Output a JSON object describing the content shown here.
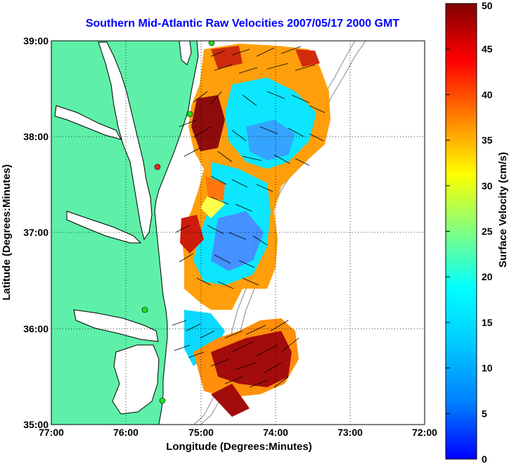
{
  "title": "Southern Mid-Atlantic Raw Velocities 2007/05/17 2000 GMT",
  "xlabel": "Longitude (Degrees:Minutes)",
  "ylabel": "Latitude (Degrees:Minutes)",
  "colorbar_label": "Surface Velocity (cm/s)",
  "x_ticks": [
    "77:00",
    "76:00",
    "75:00",
    "74:00",
    "73:00",
    "72:00"
  ],
  "y_ticks": [
    "39:00",
    "38:00",
    "37:00",
    "36:00",
    "35:00"
  ],
  "colorbar_ticks": [
    "50",
    "45",
    "40",
    "35",
    "30",
    "25",
    "20",
    "15",
    "10",
    "5",
    "0"
  ],
  "colors": {
    "land": "#5ef0a8",
    "coast": "#000000",
    "title": "#0000ff",
    "bathymetry": "#9a9a9a",
    "station_active": "#22dd22",
    "station_inactive": "#ee2222"
  },
  "map": {
    "projection": "lon-lat",
    "lon_range": [
      -77,
      -72
    ],
    "lat_range": [
      35,
      39
    ],
    "colorbar_range": [
      0,
      50
    ],
    "colormap": "jet",
    "grid": "dotted",
    "field": "surface current velocity vectors colored by speed"
  }
}
